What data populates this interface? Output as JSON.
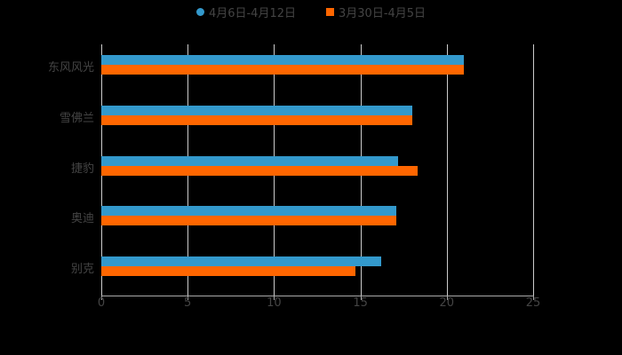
{
  "chart_data": {
    "type": "bar",
    "orientation": "horizontal",
    "title": "",
    "categories": [
      "东风风光",
      "雪佛兰",
      "捷豹",
      "奥迪",
      "别克"
    ],
    "series": [
      {
        "name": "4月6日-4月12日",
        "color": "#3399CC",
        "values": [
          21.0,
          18.0,
          17.2,
          17.1,
          16.2
        ]
      },
      {
        "name": "3月30日-4月5日",
        "color": "#FF6600",
        "values": [
          21.0,
          18.0,
          18.3,
          17.1,
          14.7
        ]
      }
    ],
    "xlabel": "",
    "ylabel": "",
    "xlim": [
      0,
      25
    ],
    "xticks": [
      "0",
      "5",
      "10",
      "15",
      "20",
      "25"
    ],
    "grid": true,
    "legend_position": "top"
  }
}
